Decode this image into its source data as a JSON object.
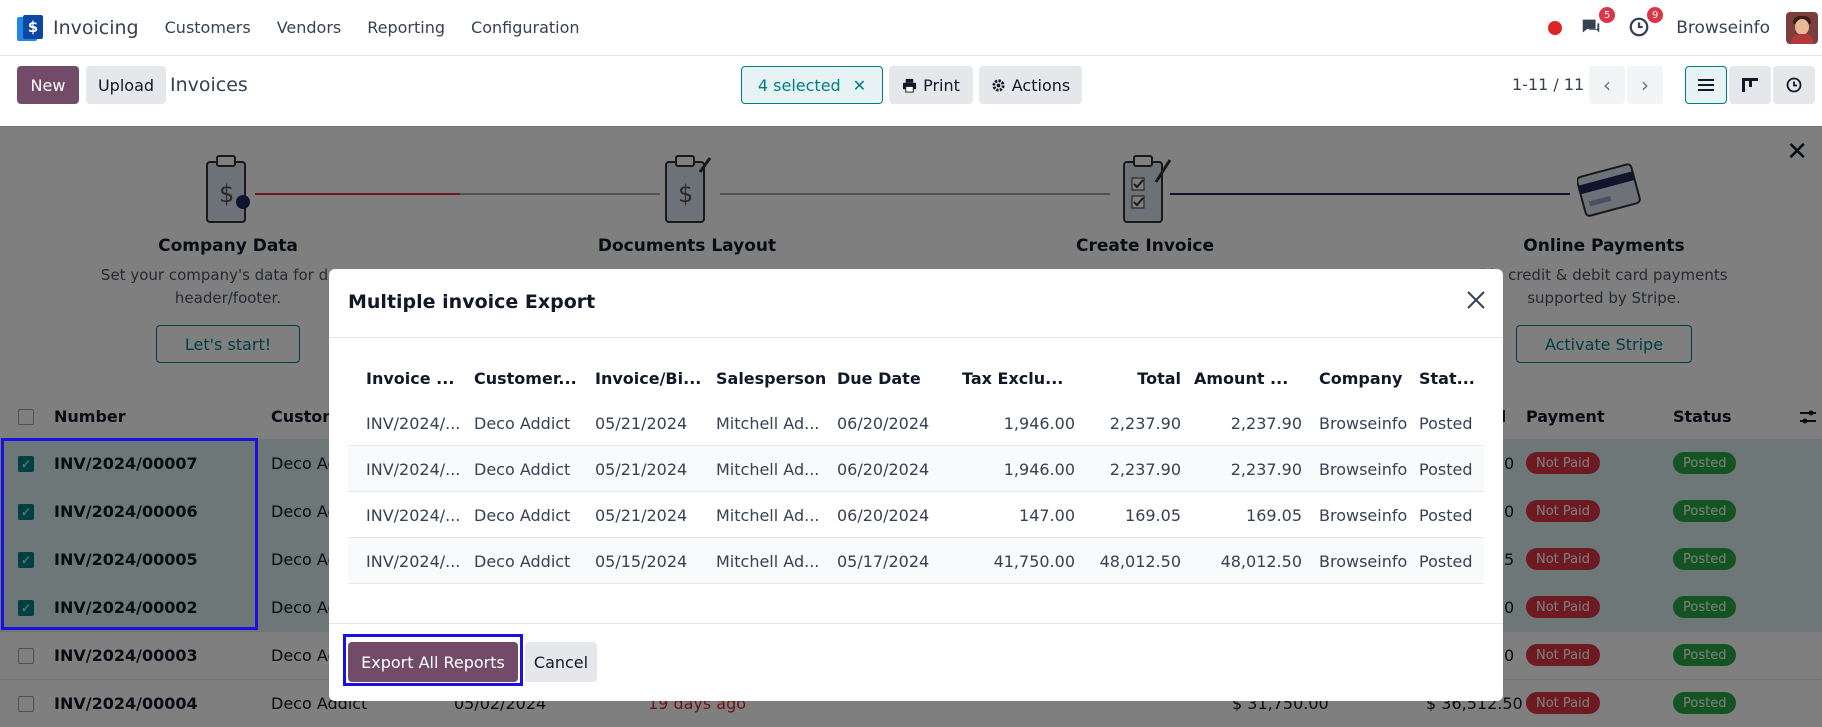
{
  "nav": {
    "app_name": "Invoicing",
    "menu": [
      "Customers",
      "Vendors",
      "Reporting",
      "Configuration"
    ],
    "messages_count": "5",
    "activities_count": "9",
    "company": "Browseinfo",
    "logo_glyph": "$"
  },
  "control": {
    "new_label": "New",
    "upload_label": "Upload",
    "title": "Invoices",
    "selected_label": "4 selected",
    "print_label": "Print",
    "actions_label": "Actions",
    "pager": "1-11 / 11"
  },
  "onboarding": {
    "steps": [
      {
        "title": "Company Data",
        "desc_line1": "Set your company's data for docu",
        "desc_line2": "header/footer.",
        "button": "Let's start!"
      },
      {
        "title": "Documents Layout"
      },
      {
        "title": "Create Invoice"
      },
      {
        "title": "Online Payments",
        "desc_line1": "ble credit & debit card payments",
        "desc_line2": "supported by Stripe.",
        "button": "Activate Stripe"
      }
    ]
  },
  "list": {
    "headers": {
      "number": "Number",
      "customer": "Custom",
      "total": "al",
      "payment": "Payment",
      "status": "Status"
    },
    "rows": [
      {
        "number": "INV/2024/00007",
        "customer": "Deco Ad",
        "total_tail": "0",
        "payment": "Not Paid",
        "status": "Posted",
        "selected": true
      },
      {
        "number": "INV/2024/00006",
        "customer": "Deco Ad",
        "total_tail": "0",
        "payment": "Not Paid",
        "status": "Posted",
        "selected": true
      },
      {
        "number": "INV/2024/00005",
        "customer": "Deco Ad",
        "total_tail": "5",
        "payment": "Not Paid",
        "status": "Posted",
        "selected": true
      },
      {
        "number": "INV/2024/00002",
        "customer": "Deco Ad",
        "total_tail": "0",
        "payment": "Not Paid",
        "status": "Posted",
        "selected": true
      },
      {
        "number": "INV/2024/00003",
        "customer": "Deco Ad",
        "total_tail": "0",
        "payment": "Not Paid",
        "status": "Posted",
        "selected": false
      },
      {
        "number": "INV/2024/00004",
        "customer": "Deco Addict",
        "date": "05/02/2024",
        "due": "19 days ago",
        "untaxed": "$ 31,750.00",
        "total": "$ 36,512.50",
        "payment": "Not Paid",
        "status": "Posted",
        "selected": false
      }
    ]
  },
  "modal": {
    "title": "Multiple invoice Export",
    "columns": [
      "Invoice ...",
      "Customer...",
      "Invoice/Bi...",
      "Salesperson",
      "Due Date",
      "Tax Exclu...",
      "Total",
      "Amount ...",
      "Company",
      "Stat..."
    ],
    "rows": [
      [
        "INV/2024/...",
        "Deco Addict",
        "05/21/2024",
        "Mitchell Ad...",
        "06/20/2024",
        "1,946.00",
        "2,237.90",
        "2,237.90",
        "Browseinfo",
        "Posted"
      ],
      [
        "INV/2024/...",
        "Deco Addict",
        "05/21/2024",
        "Mitchell Ad...",
        "06/20/2024",
        "1,946.00",
        "2,237.90",
        "2,237.90",
        "Browseinfo",
        "Posted"
      ],
      [
        "INV/2024/...",
        "Deco Addict",
        "05/21/2024",
        "Mitchell Ad...",
        "06/20/2024",
        "147.00",
        "169.05",
        "169.05",
        "Browseinfo",
        "Posted"
      ],
      [
        "INV/2024/...",
        "Deco Addict",
        "05/15/2024",
        "Mitchell Ad...",
        "05/17/2024",
        "41,750.00",
        "48,012.50",
        "48,012.50",
        "Browseinfo",
        "Posted"
      ]
    ],
    "export_label": "Export All Reports",
    "cancel_label": "Cancel"
  }
}
